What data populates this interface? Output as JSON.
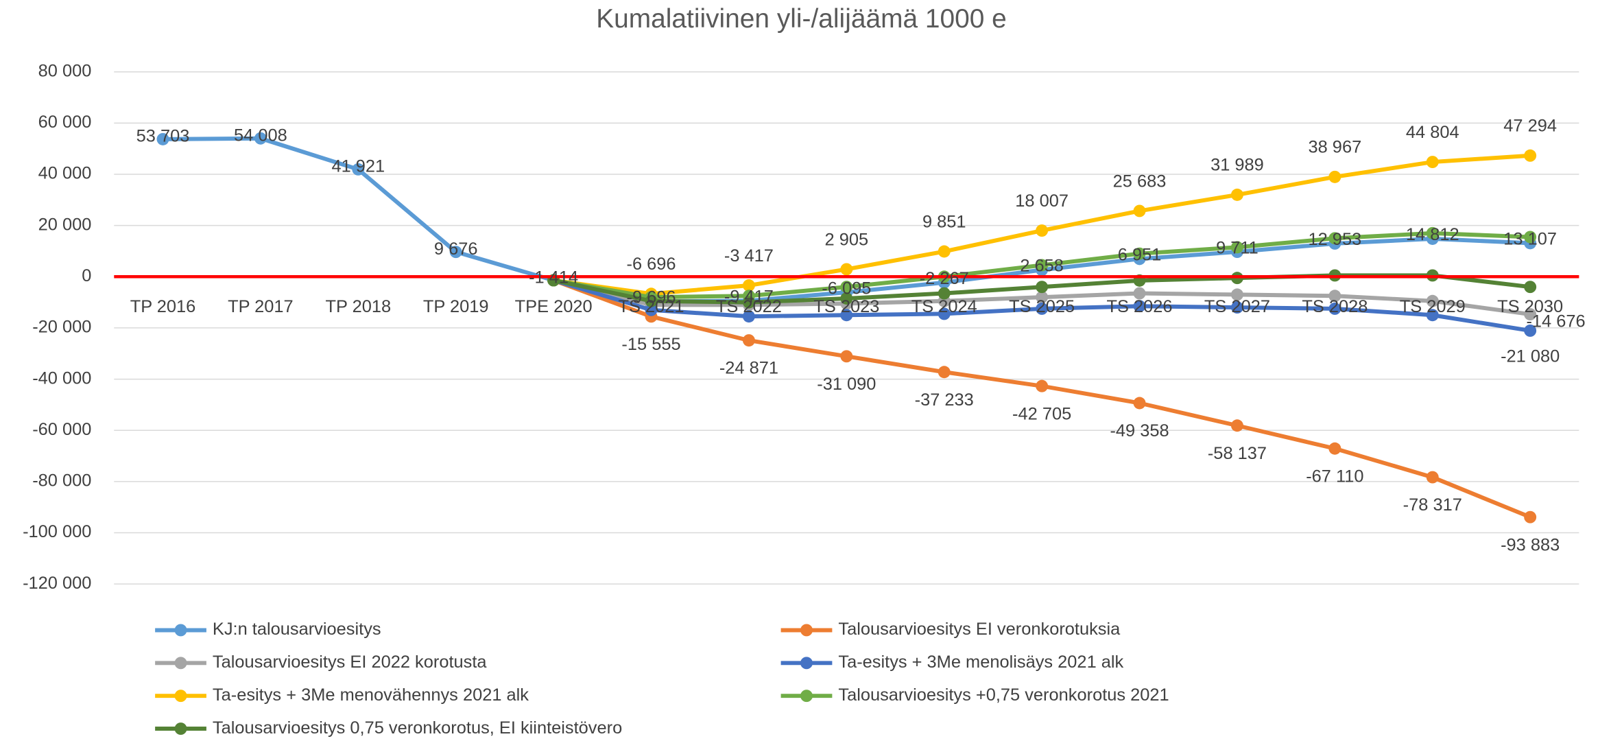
{
  "chart_data": {
    "type": "line",
    "title": "Kumalatiivinen yli-/alijäämä 1000 e",
    "categories": [
      "TP 2016",
      "TP 2017",
      "TP 2018",
      "TP 2019",
      "TPE 2020",
      "TS 2021",
      "TS 2022",
      "TS 2023",
      "TS 2024",
      "TS 2025",
      "TS 2026",
      "TS 2027",
      "TS 2028",
      "TS 2029",
      "TS 2030"
    ],
    "ylim": [
      -120000,
      80000
    ],
    "yticks": [
      {
        "value": -120000,
        "label": "-120 000"
      },
      {
        "value": -100000,
        "label": "-100 000"
      },
      {
        "value": -80000,
        "label": "-80 000"
      },
      {
        "value": -60000,
        "label": "-60 000"
      },
      {
        "value": -40000,
        "label": "-40 000"
      },
      {
        "value": -20000,
        "label": "-20 000"
      },
      0,
      {
        "value": 20000,
        "label": "20 000"
      },
      {
        "value": 40000,
        "label": "40 000"
      },
      {
        "value": 60000,
        "label": "60 000"
      },
      {
        "value": 80000,
        "label": "80 000"
      }
    ],
    "grid": true,
    "zero_line_color": "#ff0000",
    "legend": "bottom",
    "series": [
      {
        "name": "KJ:n talousarvioesitys",
        "color": "#5b9bd5",
        "values": [
          53703,
          54008,
          41921,
          9676,
          -1414,
          -9696,
          -9417,
          -6095,
          -2267,
          2658,
          6951,
          9711,
          12953,
          14812,
          13107
        ],
        "value_labels": [
          "53 703",
          "54 008",
          "41 921",
          "9 676",
          "-1 414",
          "-9 696",
          "-9 417",
          "-6 095",
          "-2 267",
          "2 658",
          "6 951",
          "9 711",
          "12 953",
          "14 812",
          "13 107"
        ]
      },
      {
        "name": "Talousarvioesitys EI veronkorotuksia",
        "color": "#ed7d31",
        "values": [
          null,
          null,
          null,
          null,
          -1414,
          -15555,
          -24871,
          -31090,
          -37233,
          -42705,
          -49358,
          -58137,
          -67110,
          -78317,
          -93883
        ],
        "value_labels": [
          null,
          null,
          null,
          null,
          null,
          "-15 555",
          "-24 871",
          "-31 090",
          "-37 233",
          "-42 705",
          "-49 358",
          "-58 137",
          "-67 110",
          "-78 317",
          "-93 883"
        ]
      },
      {
        "name": "Talousarvioesitys EI 2022 korotusta",
        "color": "#a5a5a5",
        "values": [
          null,
          null,
          null,
          null,
          -1414,
          -11000,
          -11000,
          -10500,
          -9500,
          -8000,
          -6500,
          -7000,
          -7500,
          -9500,
          -14676
        ],
        "value_labels": [
          null,
          null,
          null,
          null,
          null,
          null,
          null,
          null,
          null,
          null,
          null,
          null,
          null,
          null,
          "-14 676"
        ]
      },
      {
        "name": "Ta-esitys +  3Me menolisäys 2021 alk",
        "color": "#4472c4",
        "values": [
          null,
          null,
          null,
          null,
          -1414,
          -13000,
          -15500,
          -15000,
          -14500,
          -12500,
          -11500,
          -12000,
          -12500,
          -15000,
          -21080
        ],
        "value_labels": [
          null,
          null,
          null,
          null,
          null,
          null,
          null,
          null,
          null,
          null,
          null,
          null,
          null,
          null,
          "-21 080"
        ]
      },
      {
        "name": "Ta-esitys + 3Me menovähennys 2021 alk",
        "color": "#ffc000",
        "values": [
          null,
          null,
          null,
          null,
          -1414,
          -6696,
          -3417,
          2905,
          9851,
          18007,
          25683,
          31989,
          38967,
          44804,
          47294
        ],
        "value_labels": [
          null,
          null,
          null,
          null,
          null,
          "-6 696",
          "-3 417",
          "2 905",
          "9 851",
          "18 007",
          "25 683",
          "31 989",
          "38 967",
          "44 804",
          "47 294"
        ]
      },
      {
        "name": "Talousarvioesitys +0,75 veronkorotus 2021",
        "color": "#70ad47",
        "values": [
          null,
          null,
          null,
          null,
          -1414,
          -8000,
          -7500,
          -4000,
          0,
          4500,
          9000,
          11500,
          15000,
          17000,
          15500
        ]
      },
      {
        "name": "Talousarvioesitys 0,75 veronkorotus, EI kiinteistövero",
        "color": "#548235",
        "values": [
          null,
          null,
          null,
          null,
          -1414,
          -9500,
          -10000,
          -8500,
          -6500,
          -4000,
          -1500,
          -500,
          500,
          500,
          -4000
        ]
      }
    ]
  }
}
